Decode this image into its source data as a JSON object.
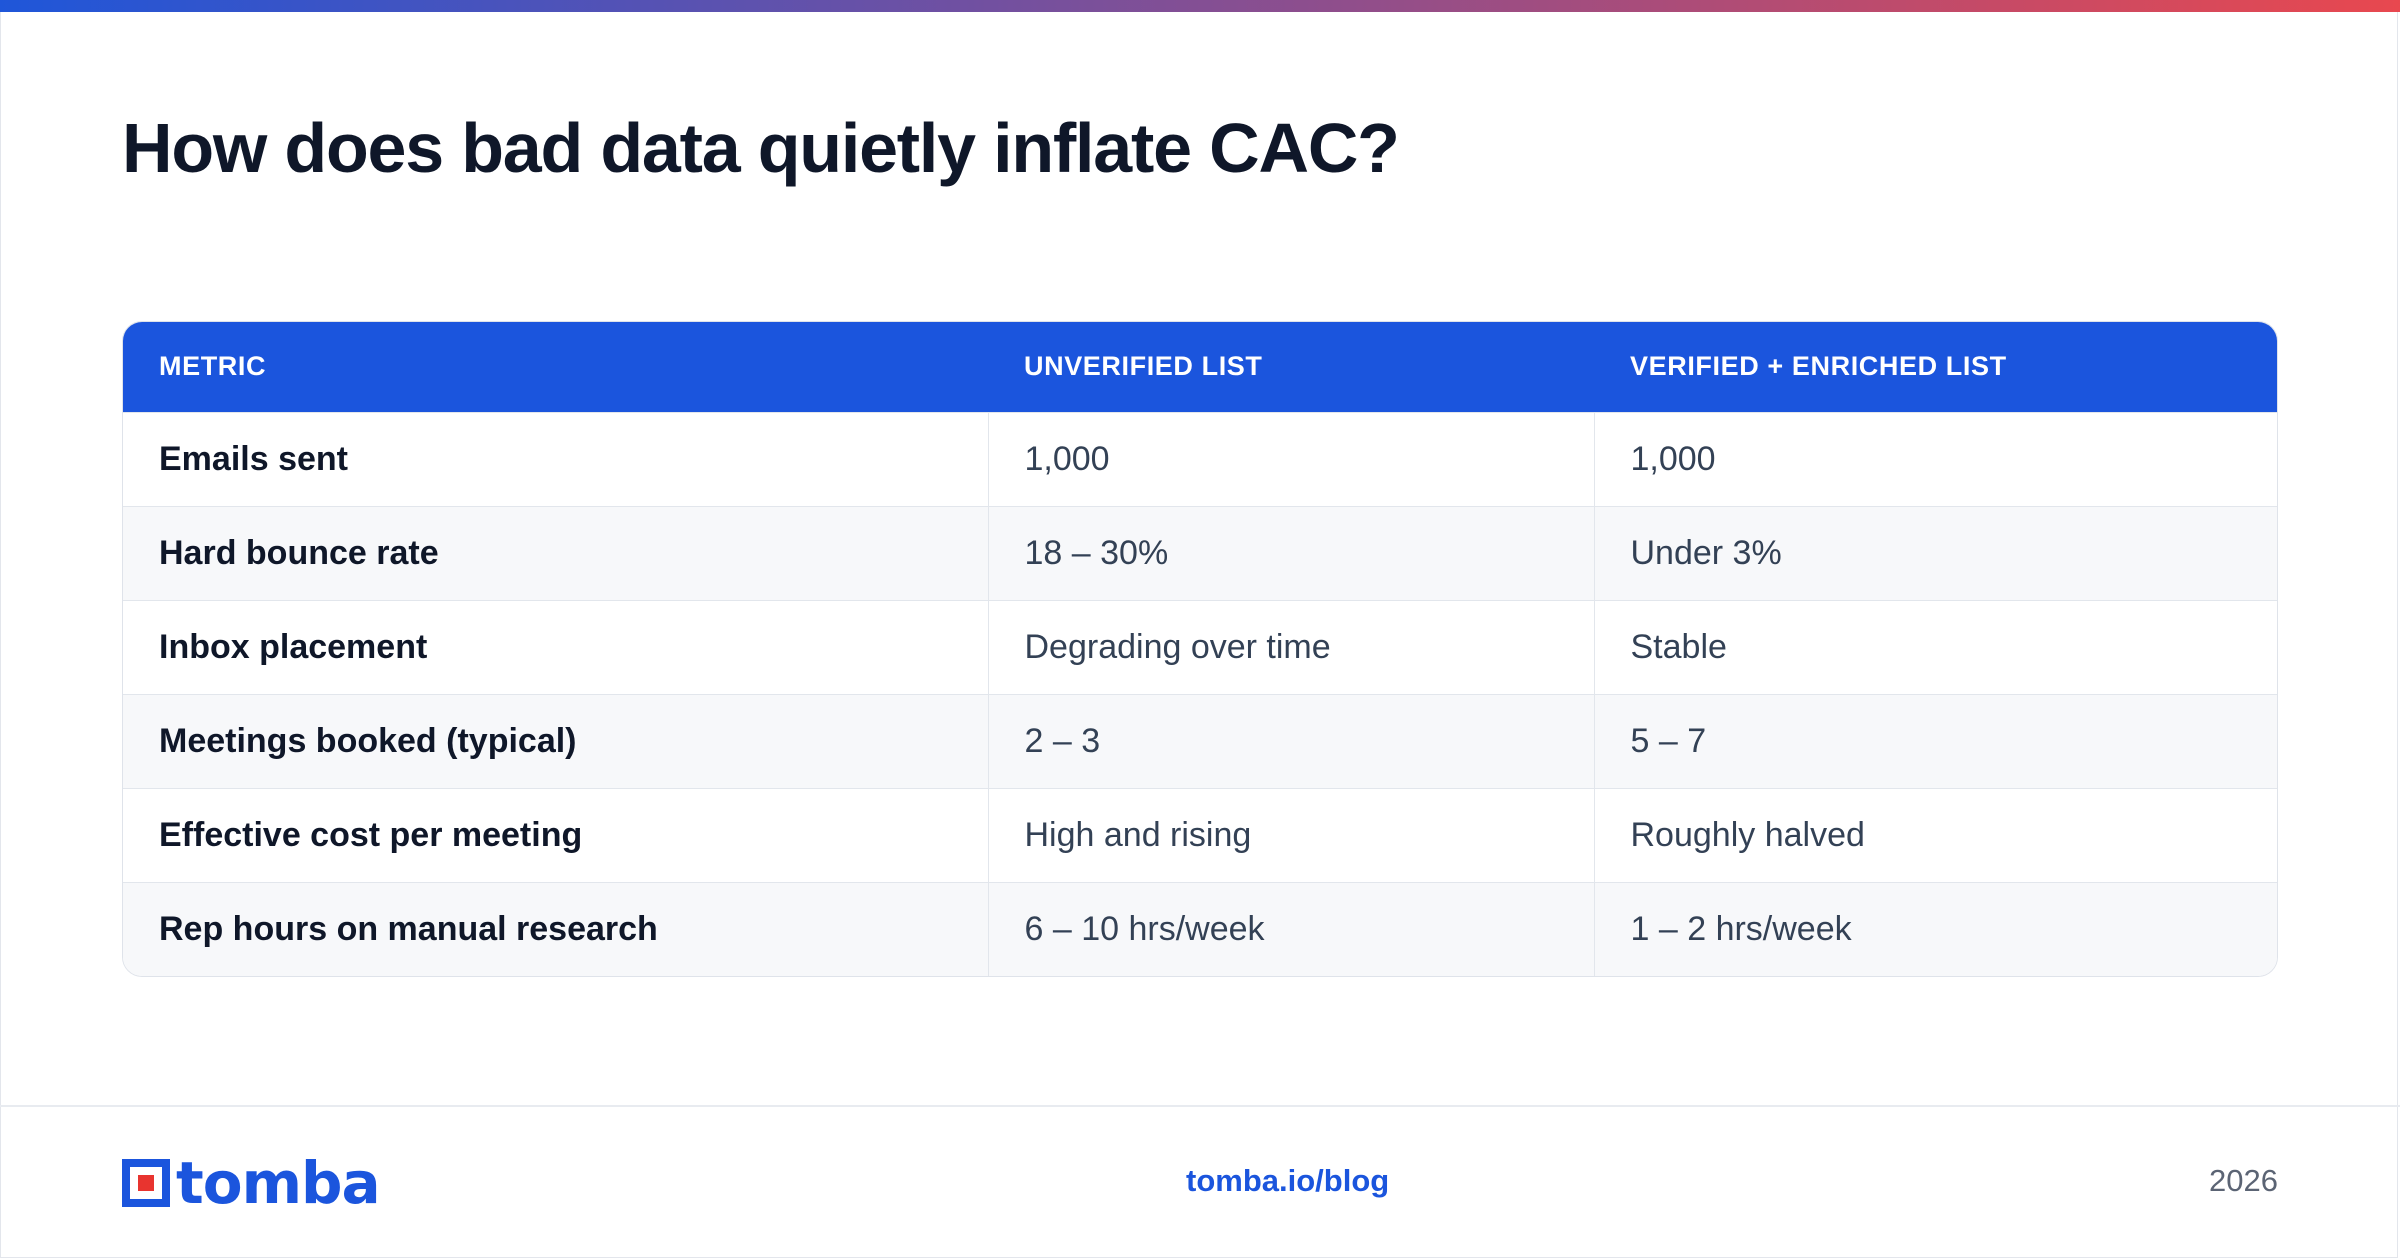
{
  "title": "How does bad data quietly inflate CAC?",
  "colors": {
    "accent": "#1b55dd",
    "gradient_start": "#1f56d9",
    "gradient_end": "#e8484f",
    "row_alt": "#f7f8fa",
    "logo_red": "#e8342f"
  },
  "table": {
    "headers": [
      "METRIC",
      "UNVERIFIED LIST",
      "VERIFIED + ENRICHED LIST"
    ],
    "rows": [
      [
        "Emails sent",
        "1,000",
        "1,000"
      ],
      [
        "Hard bounce rate",
        "18 – 30%",
        "Under 3%"
      ],
      [
        "Inbox placement",
        "Degrading over time",
        "Stable"
      ],
      [
        "Meetings booked (typical)",
        "2 – 3",
        "5 – 7"
      ],
      [
        "Effective cost per meeting",
        "High and rising",
        "Roughly halved"
      ],
      [
        "Rep hours on manual research",
        "6 – 10 hrs/week",
        "1 – 2 hrs/week"
      ]
    ]
  },
  "footer": {
    "logo_text": "tomba",
    "link": "tomba.io/blog",
    "year": "2026"
  },
  "icons": {
    "logo": "tomba-logo-icon"
  }
}
